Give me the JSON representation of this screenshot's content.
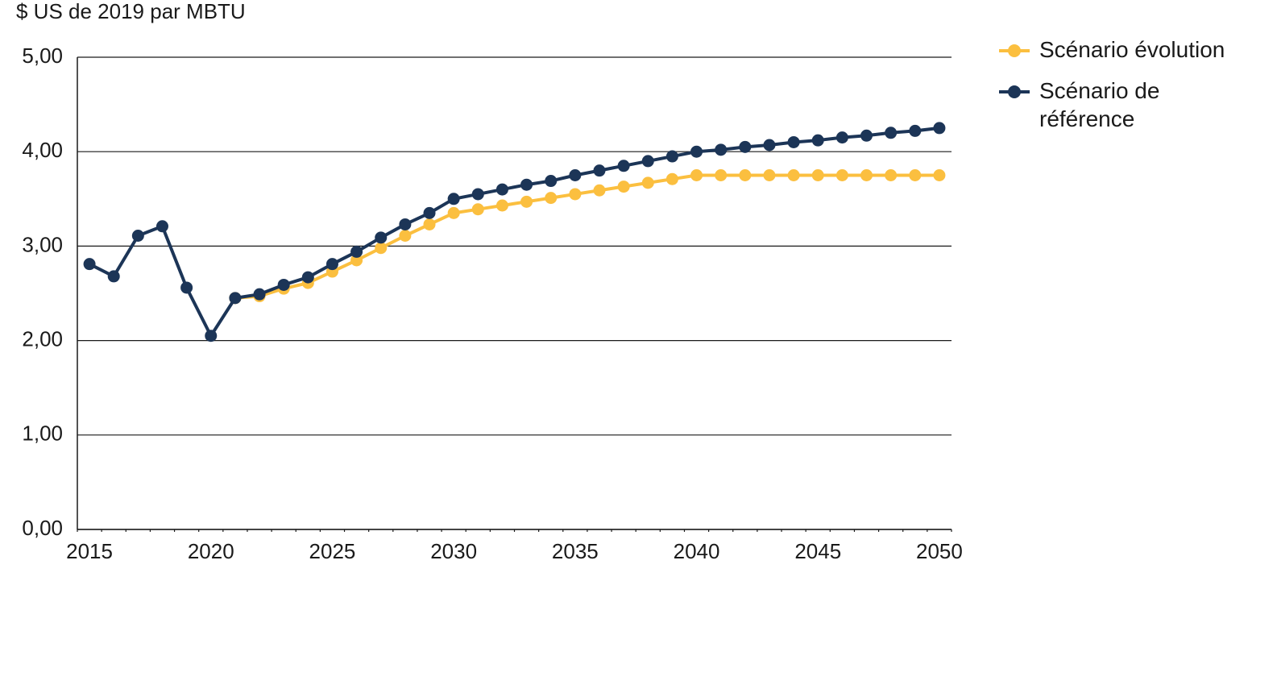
{
  "chart_data": {
    "type": "line",
    "y_axis_label": "$ US de 2019 par MBTU",
    "x": [
      2015,
      2016,
      2017,
      2018,
      2019,
      2020,
      2021,
      2022,
      2023,
      2024,
      2025,
      2026,
      2027,
      2028,
      2029,
      2030,
      2031,
      2032,
      2033,
      2034,
      2035,
      2036,
      2037,
      2038,
      2039,
      2040,
      2041,
      2042,
      2043,
      2044,
      2045,
      2046,
      2047,
      2048,
      2049,
      2050
    ],
    "xlim": [
      2014.5,
      2050.5
    ],
    "xticks": [
      2015,
      2020,
      2025,
      2030,
      2035,
      2040,
      2045,
      2050
    ],
    "ylim": [
      0,
      5
    ],
    "yticks": [
      {
        "value": 0,
        "label": "0,00"
      },
      {
        "value": 1,
        "label": "1,00"
      },
      {
        "value": 2,
        "label": "2,00"
      },
      {
        "value": 3,
        "label": "3,00"
      },
      {
        "value": 4,
        "label": "4,00"
      },
      {
        "value": 5,
        "label": "5,00"
      }
    ],
    "grid": true,
    "legend": "top-right",
    "series": [
      {
        "name": "Scénario évolution",
        "color": "#fbbf3f",
        "values": [
          null,
          null,
          null,
          null,
          null,
          null,
          2.45,
          2.47,
          2.55,
          2.61,
          2.73,
          2.85,
          2.98,
          3.11,
          3.23,
          3.35,
          3.39,
          3.43,
          3.47,
          3.51,
          3.55,
          3.59,
          3.63,
          3.67,
          3.71,
          3.75,
          3.75,
          3.75,
          3.75,
          3.75,
          3.75,
          3.75,
          3.75,
          3.75,
          3.75,
          3.75
        ]
      },
      {
        "name": "Scénario de référence",
        "color": "#1c3557",
        "values": [
          2.81,
          2.68,
          3.11,
          3.21,
          2.56,
          2.05,
          2.45,
          2.49,
          2.59,
          2.67,
          2.81,
          2.94,
          3.09,
          3.23,
          3.35,
          3.5,
          3.55,
          3.6,
          3.65,
          3.69,
          3.75,
          3.8,
          3.85,
          3.9,
          3.95,
          4.0,
          4.02,
          4.05,
          4.07,
          4.1,
          4.12,
          4.15,
          4.17,
          4.2,
          4.22,
          4.25
        ]
      }
    ]
  }
}
